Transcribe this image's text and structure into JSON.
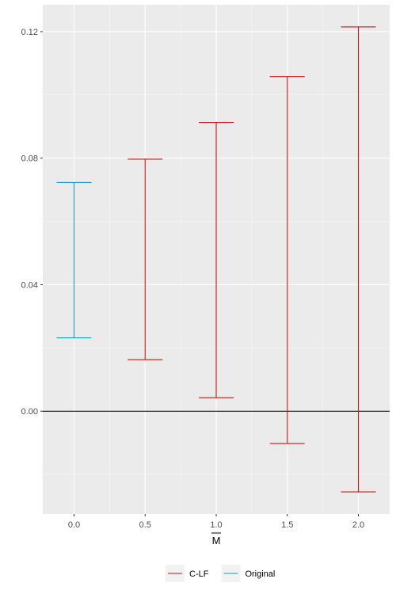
{
  "chart_data": {
    "type": "errorbar",
    "xlabel": "M",
    "xlabel_overline": true,
    "ylabel": "",
    "title": "",
    "x_ticks": [
      0.0,
      0.5,
      1.0,
      1.5,
      2.0
    ],
    "x_tick_labels": [
      "0.0",
      "0.5",
      "1.0",
      "1.5",
      "2.0"
    ],
    "y_ticks": [
      0.0,
      0.04,
      0.08,
      0.12
    ],
    "y_tick_labels": [
      "0.00",
      "0.04",
      "0.08",
      "0.12"
    ],
    "xlim": [
      -0.22,
      2.22
    ],
    "ylim": [
      -0.0325,
      0.1285
    ],
    "reference_line_y": 0.0,
    "grid": true,
    "legend_position": "bottom",
    "series": [
      {
        "name": "C-LF",
        "color": "#cc1414",
        "points": [
          {
            "x": 0.5,
            "low": 0.0163,
            "high": 0.0797
          },
          {
            "x": 1.0,
            "low": 0.0043,
            "high": 0.0913
          },
          {
            "x": 1.5,
            "low": -0.0102,
            "high": 0.1058
          },
          {
            "x": 2.0,
            "low": -0.0255,
            "high": 0.1215
          }
        ]
      },
      {
        "name": "Original",
        "color": "#1a9ad0",
        "points": [
          {
            "x": 0.0,
            "low": 0.0232,
            "high": 0.0723
          }
        ]
      }
    ],
    "legend": [
      {
        "label": "C-LF",
        "color": "#cc1414"
      },
      {
        "label": "Original",
        "color": "#1a9ad0"
      }
    ]
  }
}
